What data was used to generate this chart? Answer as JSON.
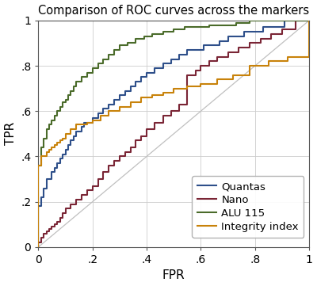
{
  "title": "Comparison of ROC curves across the markers",
  "xlabel": "FPR",
  "ylabel": "TPR",
  "xlim": [
    0,
    1
  ],
  "ylim": [
    0,
    1
  ],
  "xticks": [
    0,
    0.2,
    0.4,
    0.6,
    0.8,
    1.0
  ],
  "yticks": [
    0,
    0.2,
    0.4,
    0.6,
    0.8,
    1.0
  ],
  "xticklabels": [
    "0",
    ".2",
    ".4",
    ".6",
    ".8",
    "1"
  ],
  "yticklabels": [
    "0",
    ".2",
    ".4",
    ".6",
    ".8",
    "1"
  ],
  "background_color": "#ffffff",
  "grid_color": "#cccccc",
  "diagonal_color": "#c0c0c0",
  "title_fontsize": 10.5,
  "axis_label_fontsize": 11,
  "tick_fontsize": 10,
  "legend_fontsize": 9.5,
  "series": [
    {
      "name": "Quantas",
      "color": "#2e4f8a",
      "fpr": [
        0.0,
        0.0,
        0.01,
        0.01,
        0.02,
        0.02,
        0.03,
        0.03,
        0.04,
        0.05,
        0.06,
        0.07,
        0.08,
        0.09,
        0.1,
        0.11,
        0.12,
        0.13,
        0.14,
        0.16,
        0.17,
        0.19,
        0.2,
        0.22,
        0.24,
        0.26,
        0.28,
        0.3,
        0.32,
        0.34,
        0.36,
        0.38,
        0.4,
        0.43,
        0.46,
        0.49,
        0.52,
        0.55,
        0.58,
        0.61,
        0.64,
        0.67,
        0.7,
        0.73,
        0.76,
        0.79,
        0.83,
        0.87,
        0.91,
        0.95,
        1.0
      ],
      "tpr": [
        0.0,
        0.18,
        0.18,
        0.22,
        0.22,
        0.26,
        0.26,
        0.3,
        0.3,
        0.33,
        0.35,
        0.37,
        0.39,
        0.41,
        0.43,
        0.45,
        0.47,
        0.49,
        0.51,
        0.53,
        0.55,
        0.55,
        0.57,
        0.59,
        0.61,
        0.63,
        0.65,
        0.67,
        0.69,
        0.71,
        0.73,
        0.75,
        0.77,
        0.79,
        0.81,
        0.83,
        0.85,
        0.87,
        0.87,
        0.89,
        0.89,
        0.91,
        0.93,
        0.93,
        0.95,
        0.95,
        0.97,
        0.97,
        1.0,
        1.0,
        1.0
      ]
    },
    {
      "name": "Nano",
      "color": "#7a2535",
      "fpr": [
        0.0,
        0.0,
        0.01,
        0.02,
        0.03,
        0.04,
        0.05,
        0.06,
        0.07,
        0.08,
        0.09,
        0.1,
        0.12,
        0.14,
        0.16,
        0.18,
        0.2,
        0.22,
        0.24,
        0.26,
        0.28,
        0.3,
        0.32,
        0.34,
        0.36,
        0.38,
        0.4,
        0.43,
        0.46,
        0.49,
        0.52,
        0.55,
        0.58,
        0.6,
        0.63,
        0.66,
        0.7,
        0.74,
        0.78,
        0.82,
        0.86,
        0.9,
        0.95,
        1.0
      ],
      "tpr": [
        0.0,
        0.02,
        0.04,
        0.06,
        0.07,
        0.08,
        0.09,
        0.1,
        0.11,
        0.13,
        0.15,
        0.17,
        0.19,
        0.21,
        0.23,
        0.25,
        0.27,
        0.3,
        0.33,
        0.36,
        0.38,
        0.4,
        0.42,
        0.44,
        0.47,
        0.49,
        0.52,
        0.55,
        0.58,
        0.6,
        0.63,
        0.76,
        0.78,
        0.8,
        0.82,
        0.84,
        0.86,
        0.88,
        0.9,
        0.92,
        0.94,
        0.96,
        1.0,
        1.0
      ]
    },
    {
      "name": "ALU 115",
      "color": "#4a6b2a",
      "fpr": [
        0.0,
        0.0,
        0.01,
        0.01,
        0.02,
        0.02,
        0.03,
        0.03,
        0.04,
        0.04,
        0.05,
        0.06,
        0.07,
        0.08,
        0.09,
        0.1,
        0.11,
        0.12,
        0.13,
        0.14,
        0.16,
        0.18,
        0.2,
        0.22,
        0.24,
        0.26,
        0.28,
        0.3,
        0.33,
        0.36,
        0.39,
        0.42,
        0.46,
        0.5,
        0.54,
        0.58,
        0.63,
        0.68,
        0.73,
        0.78,
        0.83,
        0.88,
        0.93,
        0.97,
        1.0
      ],
      "tpr": [
        0.0,
        0.36,
        0.36,
        0.44,
        0.44,
        0.48,
        0.48,
        0.52,
        0.52,
        0.54,
        0.56,
        0.58,
        0.6,
        0.62,
        0.64,
        0.65,
        0.67,
        0.69,
        0.71,
        0.73,
        0.75,
        0.77,
        0.79,
        0.81,
        0.83,
        0.85,
        0.87,
        0.89,
        0.9,
        0.92,
        0.93,
        0.94,
        0.95,
        0.96,
        0.97,
        0.97,
        0.98,
        0.98,
        0.99,
        1.0,
        1.0,
        1.0,
        1.0,
        1.0,
        1.0
      ]
    },
    {
      "name": "Integrity index",
      "color": "#c8820a",
      "fpr": [
        0.0,
        0.0,
        0.01,
        0.01,
        0.02,
        0.03,
        0.04,
        0.05,
        0.06,
        0.07,
        0.08,
        0.09,
        0.1,
        0.12,
        0.14,
        0.16,
        0.18,
        0.2,
        0.23,
        0.26,
        0.3,
        0.34,
        0.38,
        0.42,
        0.46,
        0.5,
        0.55,
        0.6,
        0.66,
        0.72,
        0.78,
        0.85,
        0.92,
        1.0
      ],
      "tpr": [
        0.0,
        0.36,
        0.36,
        0.4,
        0.4,
        0.42,
        0.43,
        0.44,
        0.45,
        0.46,
        0.47,
        0.48,
        0.5,
        0.52,
        0.54,
        0.54,
        0.55,
        0.56,
        0.58,
        0.6,
        0.62,
        0.64,
        0.66,
        0.67,
        0.68,
        0.7,
        0.71,
        0.72,
        0.74,
        0.76,
        0.8,
        0.82,
        0.84,
        1.0
      ]
    }
  ]
}
